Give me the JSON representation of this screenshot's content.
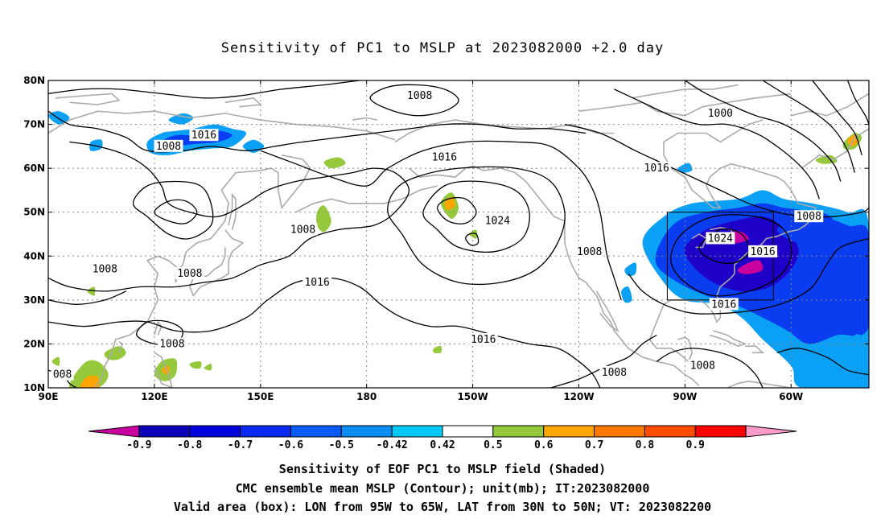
{
  "title": "Sensitivity of PC1 to MSLP at 2023082000 +2.0 day",
  "captions": [
    "Sensitivity of EOF PC1 to MSLP field (Shaded)",
    "CMC ensemble mean MSLP (Contour); unit(mb); IT:2023082000",
    "Valid area (box): LON from 95W to 65W, LAT from 30N to 50N; VT: 2023082200"
  ],
  "axes": {
    "lat_labels": [
      "80N",
      "70N",
      "60N",
      "50N",
      "40N",
      "30N",
      "20N",
      "10N"
    ],
    "lat_values": [
      80,
      70,
      60,
      50,
      40,
      30,
      20,
      10
    ],
    "lon_labels": [
      "90E",
      "120E",
      "150E",
      "180",
      "150W",
      "120W",
      "90W",
      "60W"
    ],
    "lon_values": [
      90,
      120,
      150,
      180,
      210,
      240,
      270,
      300
    ],
    "lon_range": [
      90,
      322
    ],
    "lat_range": [
      10,
      80
    ]
  },
  "valid_box": {
    "lon_min": 265,
    "lon_max": 295,
    "lat_min": 30,
    "lat_max": 50
  },
  "contour_labels": [
    {
      "text": "1008",
      "lon": 195,
      "lat": 76.5
    },
    {
      "text": "1016",
      "lon": 134,
      "lat": 67.5
    },
    {
      "text": "1008",
      "lon": 124,
      "lat": 65
    },
    {
      "text": "1000",
      "lon": 280,
      "lat": 72.5
    },
    {
      "text": "1016",
      "lon": 202,
      "lat": 62.5
    },
    {
      "text": "1016",
      "lon": 262,
      "lat": 60
    },
    {
      "text": "1024",
      "lon": 217,
      "lat": 48
    },
    {
      "text": "1008",
      "lon": 162,
      "lat": 46
    },
    {
      "text": "1016",
      "lon": 166,
      "lat": 34
    },
    {
      "text": "1008",
      "lon": 305,
      "lat": 49
    },
    {
      "text": "1024",
      "lon": 280,
      "lat": 44
    },
    {
      "text": "1016",
      "lon": 292,
      "lat": 41
    },
    {
      "text": "1008",
      "lon": 243,
      "lat": 41
    },
    {
      "text": "1008",
      "lon": 106,
      "lat": 37
    },
    {
      "text": "1008",
      "lon": 130,
      "lat": 36
    },
    {
      "text": "1016",
      "lon": 281,
      "lat": 29
    },
    {
      "text": "1016",
      "lon": 213,
      "lat": 21
    },
    {
      "text": "1008",
      "lon": 125,
      "lat": 20
    },
    {
      "text": "1008",
      "lon": 250,
      "lat": 13.5
    },
    {
      "text": "1008",
      "lon": 275,
      "lat": 15
    },
    {
      "text": "008",
      "lon": 94,
      "lat": 13
    }
  ],
  "colorbar": {
    "labels": [
      "-0.9",
      "-0.8",
      "-0.7",
      "-0.6",
      "-0.5",
      "-0.42",
      "0.42",
      "0.5",
      "0.6",
      "0.7",
      "0.8",
      "0.9"
    ],
    "colors": [
      "#c9009e",
      "#0a00b8",
      "#0000dc",
      "#0a28f0",
      "#0a5af5",
      "#0a8cf5",
      "#00c8f5",
      "#ffffff",
      "#96c83c",
      "#ffa500",
      "#ff7800",
      "#ff4b00",
      "#ff0000",
      "#ff9bc8"
    ]
  },
  "colors": {
    "neg_strong": "#1e00c8",
    "neg_mid": "#0a3cf0",
    "neg_weak": "#0aa0f5",
    "pos_weak": "#96c83c",
    "pos_mid": "#ffa500",
    "pos_strong": "#ff5a00",
    "magenta": "#c9009e",
    "coast": "#aaaaaa"
  }
}
